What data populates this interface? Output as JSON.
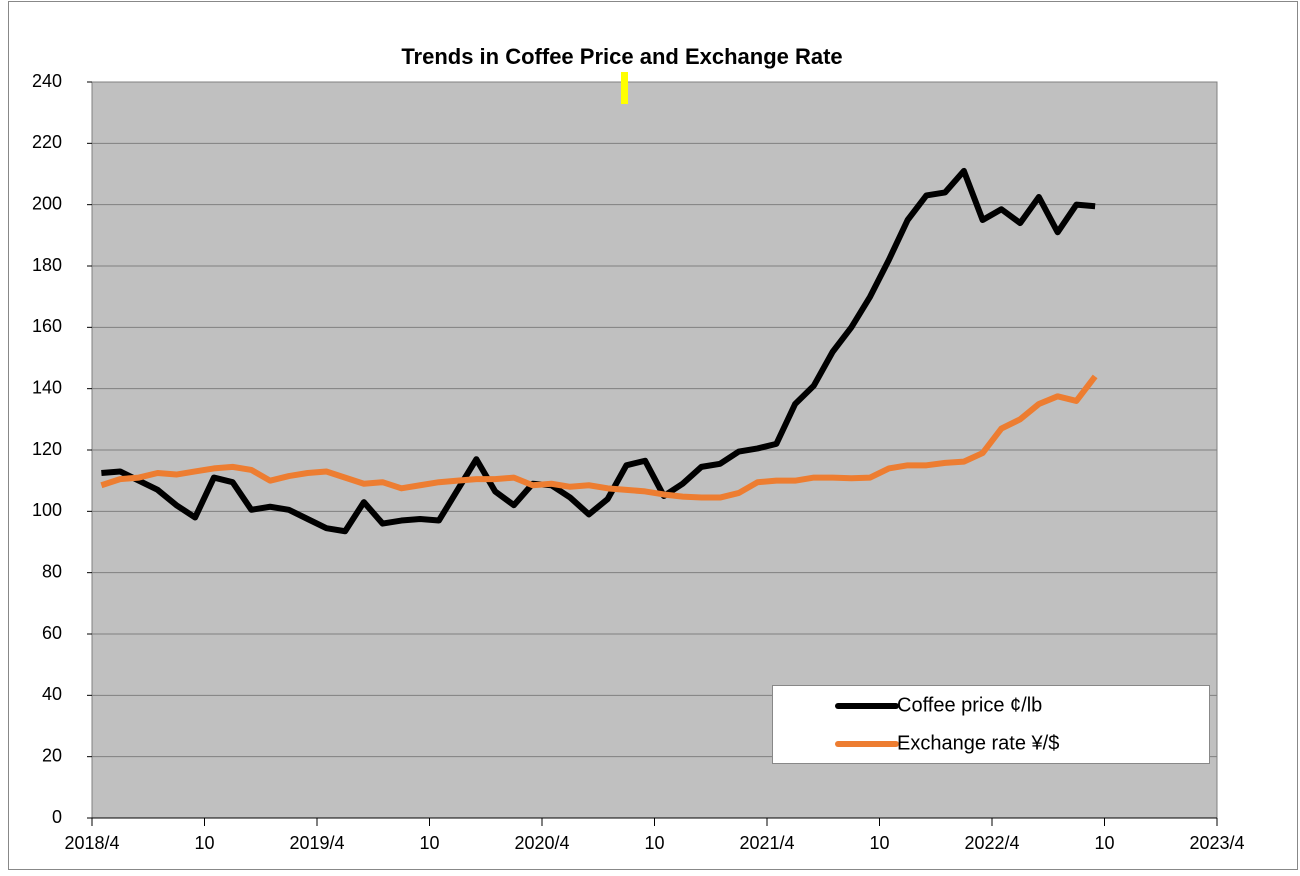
{
  "chart_data": {
    "type": "line",
    "title": "Trends in Coffee Price and Exchange Rate",
    "xlim": [
      0,
      60
    ],
    "xticks": [
      {
        "value": 0,
        "label": "2018/4"
      },
      {
        "value": 6,
        "label": "10"
      },
      {
        "value": 12,
        "label": "2019/4"
      },
      {
        "value": 18,
        "label": "10"
      },
      {
        "value": 24,
        "label": "2020/4"
      },
      {
        "value": 30,
        "label": "10"
      },
      {
        "value": 36,
        "label": "2021/4"
      },
      {
        "value": 42,
        "label": "10"
      },
      {
        "value": 48,
        "label": "2022/4"
      },
      {
        "value": 54,
        "label": "10"
      },
      {
        "value": 60,
        "label": "2023/4"
      }
    ],
    "ylim": [
      0,
      240
    ],
    "yticks": [
      0,
      20,
      40,
      60,
      80,
      100,
      120,
      140,
      160,
      180,
      200,
      220,
      240
    ],
    "grid": true,
    "x": [
      0.5,
      1.5,
      2.5,
      3.5,
      4.5,
      5.5,
      6.5,
      7.5,
      8.5,
      9.5,
      10.5,
      11.5,
      12.5,
      13.5,
      14.5,
      15.5,
      16.5,
      17.5,
      18.5,
      19.5,
      20.5,
      21.5,
      22.5,
      23.5,
      24.5,
      25.5,
      26.5,
      27.5,
      28.5,
      29.5,
      30.5,
      31.5,
      32.5,
      33.5,
      34.5,
      35.5,
      36.5,
      37.5,
      38.5,
      39.5,
      40.5,
      41.5,
      42.5,
      43.5,
      44.5,
      45.5,
      46.5,
      47.5,
      48.5,
      49.5,
      50.5,
      51.5,
      52.5,
      53.5
    ],
    "series": [
      {
        "name": "Coffee price ¢/lb",
        "color": "#000000",
        "values": [
          112.5,
          113,
          110,
          107,
          102,
          98,
          111,
          109.5,
          100.5,
          101.5,
          100.5,
          97.5,
          94.5,
          93.5,
          103,
          96,
          97,
          97.5,
          97,
          107,
          117,
          106.5,
          102,
          109,
          108.5,
          104.5,
          99,
          104,
          115,
          116.5,
          105,
          109,
          114.5,
          115.5,
          119.5,
          120.5,
          122,
          135,
          141,
          152,
          160,
          170,
          182,
          195,
          203,
          204,
          211,
          195,
          198.5,
          194,
          202.5,
          191,
          200,
          199.5
        ]
      },
      {
        "name": "Exchange rate ¥/$",
        "color": "#ed7d31",
        "values": [
          108.5,
          110.5,
          111,
          112.5,
          112,
          113,
          114,
          114.5,
          113.5,
          110,
          111.5,
          112.5,
          113,
          111,
          109,
          109.5,
          107.5,
          108.5,
          109.5,
          110,
          110.5,
          110.5,
          111,
          108.5,
          109,
          108,
          108.5,
          107.5,
          107,
          106.5,
          105.5,
          104.8,
          104.5,
          104.5,
          106,
          109.5,
          110,
          110,
          111,
          111,
          110.8,
          111,
          114,
          115,
          115,
          115.8,
          116.2,
          119,
          127,
          130,
          135,
          137.5,
          136,
          144
        ]
      }
    ]
  }
}
